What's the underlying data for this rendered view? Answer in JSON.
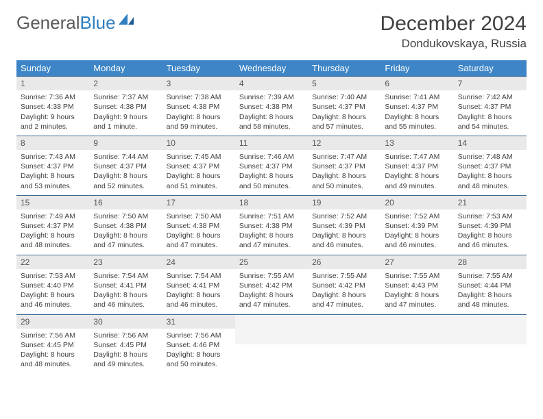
{
  "brand": {
    "word1": "General",
    "word2": "Blue"
  },
  "title": "December 2024",
  "location": "Dondukovskaya, Russia",
  "colors": {
    "header_bg": "#3d85c6",
    "header_text": "#ffffff",
    "daynum_bg": "#e9e9e9",
    "rule": "#3d6a94",
    "brand_gray": "#5a5a5a",
    "brand_blue": "#2f7fc1",
    "text": "#404040"
  },
  "weekdays": [
    "Sunday",
    "Monday",
    "Tuesday",
    "Wednesday",
    "Thursday",
    "Friday",
    "Saturday"
  ],
  "weeks": [
    [
      {
        "n": "1",
        "sr": "Sunrise: 7:36 AM",
        "ss": "Sunset: 4:38 PM",
        "dl": "Daylight: 9 hours and 2 minutes."
      },
      {
        "n": "2",
        "sr": "Sunrise: 7:37 AM",
        "ss": "Sunset: 4:38 PM",
        "dl": "Daylight: 9 hours and 1 minute."
      },
      {
        "n": "3",
        "sr": "Sunrise: 7:38 AM",
        "ss": "Sunset: 4:38 PM",
        "dl": "Daylight: 8 hours and 59 minutes."
      },
      {
        "n": "4",
        "sr": "Sunrise: 7:39 AM",
        "ss": "Sunset: 4:38 PM",
        "dl": "Daylight: 8 hours and 58 minutes."
      },
      {
        "n": "5",
        "sr": "Sunrise: 7:40 AM",
        "ss": "Sunset: 4:37 PM",
        "dl": "Daylight: 8 hours and 57 minutes."
      },
      {
        "n": "6",
        "sr": "Sunrise: 7:41 AM",
        "ss": "Sunset: 4:37 PM",
        "dl": "Daylight: 8 hours and 55 minutes."
      },
      {
        "n": "7",
        "sr": "Sunrise: 7:42 AM",
        "ss": "Sunset: 4:37 PM",
        "dl": "Daylight: 8 hours and 54 minutes."
      }
    ],
    [
      {
        "n": "8",
        "sr": "Sunrise: 7:43 AM",
        "ss": "Sunset: 4:37 PM",
        "dl": "Daylight: 8 hours and 53 minutes."
      },
      {
        "n": "9",
        "sr": "Sunrise: 7:44 AM",
        "ss": "Sunset: 4:37 PM",
        "dl": "Daylight: 8 hours and 52 minutes."
      },
      {
        "n": "10",
        "sr": "Sunrise: 7:45 AM",
        "ss": "Sunset: 4:37 PM",
        "dl": "Daylight: 8 hours and 51 minutes."
      },
      {
        "n": "11",
        "sr": "Sunrise: 7:46 AM",
        "ss": "Sunset: 4:37 PM",
        "dl": "Daylight: 8 hours and 50 minutes."
      },
      {
        "n": "12",
        "sr": "Sunrise: 7:47 AM",
        "ss": "Sunset: 4:37 PM",
        "dl": "Daylight: 8 hours and 50 minutes."
      },
      {
        "n": "13",
        "sr": "Sunrise: 7:47 AM",
        "ss": "Sunset: 4:37 PM",
        "dl": "Daylight: 8 hours and 49 minutes."
      },
      {
        "n": "14",
        "sr": "Sunrise: 7:48 AM",
        "ss": "Sunset: 4:37 PM",
        "dl": "Daylight: 8 hours and 48 minutes."
      }
    ],
    [
      {
        "n": "15",
        "sr": "Sunrise: 7:49 AM",
        "ss": "Sunset: 4:37 PM",
        "dl": "Daylight: 8 hours and 48 minutes."
      },
      {
        "n": "16",
        "sr": "Sunrise: 7:50 AM",
        "ss": "Sunset: 4:38 PM",
        "dl": "Daylight: 8 hours and 47 minutes."
      },
      {
        "n": "17",
        "sr": "Sunrise: 7:50 AM",
        "ss": "Sunset: 4:38 PM",
        "dl": "Daylight: 8 hours and 47 minutes."
      },
      {
        "n": "18",
        "sr": "Sunrise: 7:51 AM",
        "ss": "Sunset: 4:38 PM",
        "dl": "Daylight: 8 hours and 47 minutes."
      },
      {
        "n": "19",
        "sr": "Sunrise: 7:52 AM",
        "ss": "Sunset: 4:39 PM",
        "dl": "Daylight: 8 hours and 46 minutes."
      },
      {
        "n": "20",
        "sr": "Sunrise: 7:52 AM",
        "ss": "Sunset: 4:39 PM",
        "dl": "Daylight: 8 hours and 46 minutes."
      },
      {
        "n": "21",
        "sr": "Sunrise: 7:53 AM",
        "ss": "Sunset: 4:39 PM",
        "dl": "Daylight: 8 hours and 46 minutes."
      }
    ],
    [
      {
        "n": "22",
        "sr": "Sunrise: 7:53 AM",
        "ss": "Sunset: 4:40 PM",
        "dl": "Daylight: 8 hours and 46 minutes."
      },
      {
        "n": "23",
        "sr": "Sunrise: 7:54 AM",
        "ss": "Sunset: 4:41 PM",
        "dl": "Daylight: 8 hours and 46 minutes."
      },
      {
        "n": "24",
        "sr": "Sunrise: 7:54 AM",
        "ss": "Sunset: 4:41 PM",
        "dl": "Daylight: 8 hours and 46 minutes."
      },
      {
        "n": "25",
        "sr": "Sunrise: 7:55 AM",
        "ss": "Sunset: 4:42 PM",
        "dl": "Daylight: 8 hours and 47 minutes."
      },
      {
        "n": "26",
        "sr": "Sunrise: 7:55 AM",
        "ss": "Sunset: 4:42 PM",
        "dl": "Daylight: 8 hours and 47 minutes."
      },
      {
        "n": "27",
        "sr": "Sunrise: 7:55 AM",
        "ss": "Sunset: 4:43 PM",
        "dl": "Daylight: 8 hours and 47 minutes."
      },
      {
        "n": "28",
        "sr": "Sunrise: 7:55 AM",
        "ss": "Sunset: 4:44 PM",
        "dl": "Daylight: 8 hours and 48 minutes."
      }
    ],
    [
      {
        "n": "29",
        "sr": "Sunrise: 7:56 AM",
        "ss": "Sunset: 4:45 PM",
        "dl": "Daylight: 8 hours and 48 minutes."
      },
      {
        "n": "30",
        "sr": "Sunrise: 7:56 AM",
        "ss": "Sunset: 4:45 PM",
        "dl": "Daylight: 8 hours and 49 minutes."
      },
      {
        "n": "31",
        "sr": "Sunrise: 7:56 AM",
        "ss": "Sunset: 4:46 PM",
        "dl": "Daylight: 8 hours and 50 minutes."
      },
      {
        "empty": true
      },
      {
        "empty": true
      },
      {
        "empty": true
      },
      {
        "empty": true
      }
    ]
  ]
}
